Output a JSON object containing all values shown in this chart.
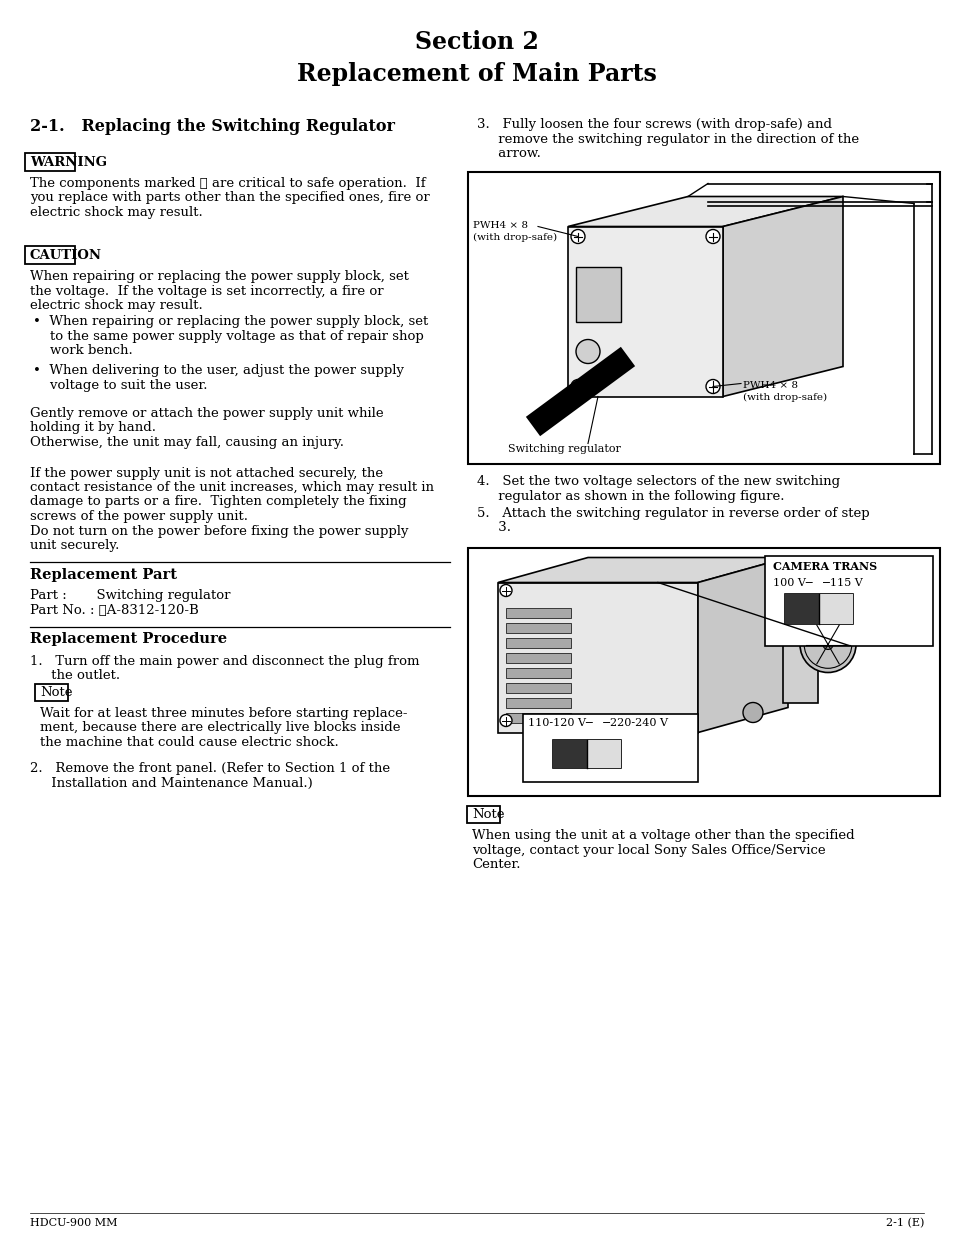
{
  "bg_color": "#ffffff",
  "page_width": 9.54,
  "page_height": 12.44,
  "dpi": 100,
  "title_line1": "Section 2",
  "title_line2": "Replacement of Main Parts",
  "section_title": "2-1.   Replacing the Switching Regulator",
  "warning_label": "WARNING",
  "warning_text_l1": "The components marked ⚠ are critical to safe operation.  If",
  "warning_text_l2": "you replace with parts other than the specified ones, fire or",
  "warning_text_l3": "electric shock may result.",
  "caution_label": "CAUTION",
  "caution_text_l1": "When repairing or replacing the power supply block, set",
  "caution_text_l2": "the voltage.  If the voltage is set incorrectly, a fire or",
  "caution_text_l3": "electric shock may result.",
  "bullet1_l1": "•  When repairing or replacing the power supply block, set",
  "bullet1_l2": "    to the same power supply voltage as that of repair shop",
  "bullet1_l3": "    work bench.",
  "bullet2_l1": "•  When delivering to the user, adjust the power supply",
  "bullet2_l2": "    voltage to suit the user.",
  "para1_l1": "Gently remove or attach the power supply unit while",
  "para1_l2": "holding it by hand.",
  "para1_l3": "Otherwise, the unit may fall, causing an injury.",
  "para2_l1": "If the power supply unit is not attached securely, the",
  "para2_l2": "contact resistance of the unit increases, which may result in",
  "para2_l3": "damage to parts or a fire.  Tighten completely the fixing",
  "para2_l4": "screws of the power supply unit.",
  "para2_l5": "Do not turn on the power before fixing the power supply",
  "para2_l6": "unit securely.",
  "replacement_part_label": "Replacement Part",
  "part_line1": "Part :       Switching regulator",
  "part_line2": "Part No. : ⚠A-8312-120-B",
  "replacement_proc_label": "Replacement Procedure",
  "step1_l1": "1.   Turn off the main power and disconnect the plug from",
  "step1_l2": "     the outlet.",
  "note1_label": "Note",
  "note1_l1": "Wait for at least three minutes before starting replace-",
  "note1_l2": "ment, because there are electrically live blocks inside",
  "note1_l3": "the machine that could cause electric shock.",
  "step2_l1": "2.   Remove the front panel. (Refer to Section 1 of the",
  "step2_l2": "     Installation and Maintenance Manual.)",
  "right_step3_l1": "3.   Fully loosen the four screws (with drop-safe) and",
  "right_step3_l2": "     remove the switching regulator in the direction of the",
  "right_step3_l3": "     arrow.",
  "right_step4_l1": "4.   Set the two voltage selectors of the new switching",
  "right_step4_l2": "     regulator as shown in the following figure.",
  "right_step5_l1": "5.   Attach the switching regulator in reverse order of step",
  "right_step5_l2": "     3.",
  "note2_label": "Note",
  "note2_l1": "When using the unit at a voltage other than the specified",
  "note2_l2": "voltage, contact your local Sony Sales Office/Service",
  "note2_l3": "Center.",
  "diag1_label_pwh1": "PWH4 × 8\n(with drop-safe)",
  "diag1_label_pwh2": "PWH4 × 8\n(with drop-safe)",
  "diag1_label_sr": "Switching regulator",
  "diag2_label_ct": "CAMERA TRANS",
  "diag2_label_v1": "100 V─   ─115 V",
  "diag2_label_v2": "110-120 V─   ─220-240 V",
  "footer_left": "HDCU-900 MM",
  "footer_right": "2-1 (E)",
  "fs_body": 9.5,
  "fs_title": 17,
  "fs_section": 11.5,
  "fs_subhead": 10.5,
  "fs_small": 7.5
}
